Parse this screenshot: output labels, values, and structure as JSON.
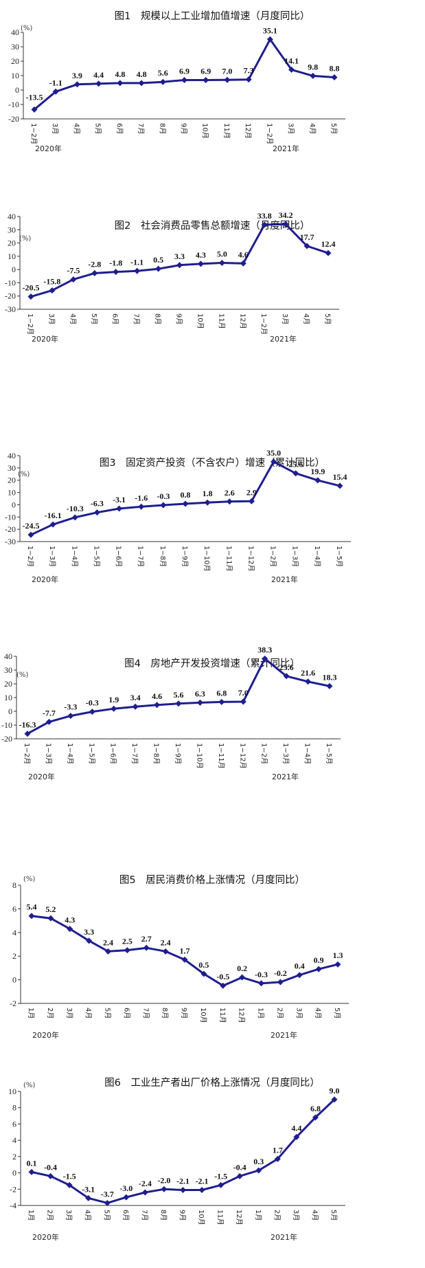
{
  "chart_data": [
    {
      "type": "line",
      "title": "图1　规模以上工业增加值增速（月度同比）",
      "unit": "(%)",
      "ylim": [
        -20,
        40
      ],
      "yticks": [
        -20,
        -10,
        0,
        10,
        20,
        30,
        40
      ],
      "categories": [
        "1−2月",
        "3月",
        "4月",
        "5月",
        "6月",
        "7月",
        "8月",
        "9月",
        "10月",
        "11月",
        "12月",
        "1−2月",
        "3月",
        "4月",
        "5月"
      ],
      "year_labels": [
        "2020年",
        "2021年"
      ],
      "series": [
        {
          "values": [
            -13.5,
            -1.1,
            3.9,
            4.4,
            4.8,
            4.8,
            5.6,
            6.9,
            6.9,
            7.0,
            7.3,
            35.1,
            14.1,
            9.8,
            8.8
          ]
        }
      ],
      "data_labels": [
        "-13.5",
        "-1.1",
        "3.9",
        "4.4",
        "4.8",
        "4.8",
        "5.6",
        "6.9",
        "6.9",
        "7.0",
        "7.3",
        "35.1",
        "14.1",
        "9.8",
        "8.8"
      ],
      "accent": "#1e1e8e"
    },
    {
      "type": "line",
      "title": "图2　社会消费品零售总额增速（月度同比）",
      "unit": "(%)",
      "ylim": [
        -30,
        40
      ],
      "yticks": [
        -30,
        -20,
        -10,
        0,
        10,
        20,
        30,
        40
      ],
      "categories": [
        "1−2月",
        "3月",
        "4月",
        "5月",
        "6月",
        "7月",
        "8月",
        "9月",
        "10月",
        "11月",
        "12月",
        "1−2月",
        "3月",
        "4月",
        "5月"
      ],
      "year_labels": [
        "2020年",
        "2021年"
      ],
      "series": [
        {
          "values": [
            -20.5,
            -15.8,
            -7.5,
            -2.8,
            -1.8,
            -1.1,
            0.5,
            3.3,
            4.3,
            5.0,
            4.6,
            33.8,
            34.2,
            17.7,
            12.4
          ]
        }
      ],
      "data_labels": [
        "-20.5",
        "-15.8",
        "-7.5",
        "-2.8",
        "-1.8",
        "-1.1",
        "0.5",
        "3.3",
        "4.3",
        "5.0",
        "4.6",
        "33.8",
        "34.2",
        "17.7",
        "12.4"
      ],
      "accent": "#1e1e8e"
    },
    {
      "type": "line",
      "title": "图3　固定资产投资（不含农户）增速（累计同比）",
      "unit": "(%)",
      "ylim": [
        -30,
        40
      ],
      "yticks": [
        -30,
        -20,
        -10,
        0,
        10,
        20,
        30,
        40
      ],
      "categories": [
        "1−2月",
        "1−3月",
        "1−4月",
        "1−5月",
        "1−6月",
        "1−7月",
        "1−8月",
        "1−9月",
        "1−10月",
        "1−11月",
        "1−12月",
        "1−2月",
        "1−3月",
        "1−4月",
        "1−5月"
      ],
      "year_labels": [
        "2020年",
        "2021年"
      ],
      "series": [
        {
          "values": [
            -24.5,
            -16.1,
            -10.3,
            -6.3,
            -3.1,
            -1.6,
            -0.3,
            0.8,
            1.8,
            2.6,
            2.9,
            35.0,
            25.6,
            19.9,
            15.4
          ]
        }
      ],
      "data_labels": [
        "-24.5",
        "-16.1",
        "-10.3",
        "-6.3",
        "-3.1",
        "-1.6",
        "-0.3",
        "0.8",
        "1.8",
        "2.6",
        "2.9",
        "35.0",
        "25.6",
        "19.9",
        "15.4"
      ],
      "accent": "#1e1e8e"
    },
    {
      "type": "line",
      "title": "图4　房地产开发投资增速（累计同比）",
      "unit": "(%)",
      "ylim": [
        -20,
        40
      ],
      "yticks": [
        -20,
        -10,
        0,
        10,
        20,
        30,
        40
      ],
      "categories": [
        "1−2月",
        "1−3月",
        "1−4月",
        "1−5月",
        "1−6月",
        "1−7月",
        "1−8月",
        "1−9月",
        "1−10月",
        "1−11月",
        "1−12月",
        "1−2月",
        "1−3月",
        "1−4月",
        "1−5月"
      ],
      "year_labels": [
        "2020年",
        "2021年"
      ],
      "series": [
        {
          "values": [
            -16.3,
            -7.7,
            -3.3,
            -0.3,
            1.9,
            3.4,
            4.6,
            5.6,
            6.3,
            6.8,
            7.0,
            38.3,
            25.6,
            21.6,
            18.3
          ]
        }
      ],
      "data_labels": [
        "-16.3",
        "-7.7",
        "-3.3",
        "-0.3",
        "1.9",
        "3.4",
        "4.6",
        "5.6",
        "6.3",
        "6.8",
        "7.0",
        "38.3",
        "25.6",
        "21.6",
        "18.3"
      ],
      "accent": "#1e1e8e"
    },
    {
      "type": "line",
      "title": "图5　居民消费价格上涨情况（月度同比）",
      "unit": "(%)",
      "ylim": [
        -2,
        8
      ],
      "yticks": [
        -2,
        0,
        2,
        4,
        6,
        8
      ],
      "categories": [
        "1月",
        "2月",
        "3月",
        "4月",
        "5月",
        "6月",
        "7月",
        "8月",
        "9月",
        "10月",
        "11月",
        "12月",
        "1月",
        "2月",
        "3月",
        "4月",
        "5月"
      ],
      "year_labels": [
        "2020年",
        "2021年"
      ],
      "series": [
        {
          "values": [
            5.4,
            5.2,
            4.3,
            3.3,
            2.4,
            2.5,
            2.7,
            2.4,
            1.7,
            0.5,
            -0.5,
            0.2,
            -0.3,
            -0.2,
            0.4,
            0.9,
            1.3
          ]
        }
      ],
      "data_labels": [
        "5.4",
        "5.2",
        "4.3",
        "3.3",
        "2.4",
        "2.5",
        "2.7",
        "2.4",
        "1.7",
        "0.5",
        "-0.5",
        "0.2",
        "-0.3",
        "-0.2",
        "0.4",
        "0.9",
        "1.3"
      ],
      "accent": "#1e1e8e"
    },
    {
      "type": "line",
      "title": "图6　工业生产者出厂价格上涨情况（月度同比）",
      "unit": "(%)",
      "ylim": [
        -4,
        10
      ],
      "yticks": [
        -4,
        -2,
        0,
        2,
        4,
        6,
        8,
        10
      ],
      "categories": [
        "1月",
        "2月",
        "3月",
        "4月",
        "5月",
        "6月",
        "7月",
        "8月",
        "9月",
        "10月",
        "11月",
        "12月",
        "1月",
        "2月",
        "3月",
        "4月",
        "5月"
      ],
      "year_labels": [
        "2020年",
        "2021年"
      ],
      "series": [
        {
          "values": [
            0.1,
            -0.4,
            -1.5,
            -3.1,
            -3.7,
            -3.0,
            -2.4,
            -2.0,
            -2.1,
            -2.1,
            -1.5,
            -0.4,
            0.3,
            1.7,
            4.4,
            6.8,
            9.0
          ]
        }
      ],
      "data_labels": [
        "0.1",
        "-0.4",
        "-1.5",
        "-3.1",
        "-3.7",
        "-3.0",
        "-2.4",
        "-2.0",
        "-2.1",
        "-2.1",
        "-1.5",
        "-0.4",
        "0.3",
        "1.7",
        "4.4",
        "6.8",
        "9.0"
      ],
      "accent": "#1e1e8e"
    }
  ]
}
